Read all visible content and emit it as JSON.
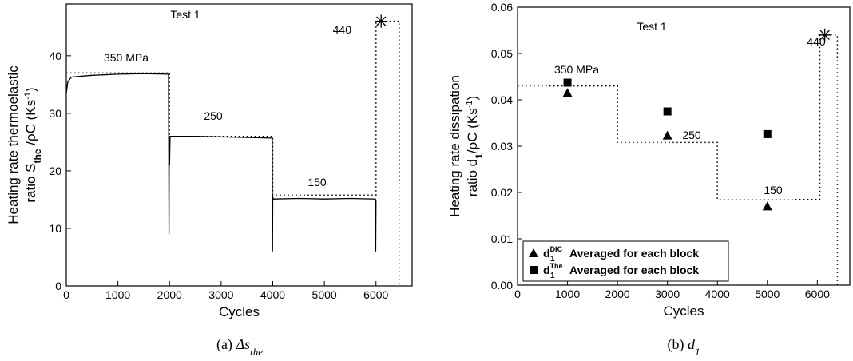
{
  "chart_data": [
    {
      "type": "line",
      "xlabel": "Cycles",
      "ylabel": [
        "Heating rate thermoelastic",
        "ratio S",
        "the",
        " /ρC (Ks",
        "-1",
        ")"
      ],
      "caption": [
        "(a) ",
        "Δs",
        "the"
      ],
      "xlim": [
        0,
        6700
      ],
      "ylim": [
        0,
        49
      ],
      "xticks": [
        0,
        1000,
        2000,
        3000,
        4000,
        5000,
        6000
      ],
      "yticks": [
        0,
        10,
        20,
        30,
        40
      ],
      "annotations": [
        "Test 1",
        "350 MPa",
        "250",
        "150",
        "440"
      ],
      "series": [
        {
          "style": "solid",
          "color": "#000000",
          "x": [
            0,
            30,
            100,
            500,
            1000,
            1500,
            1980,
            1990,
            1995,
            2000,
            2010,
            2500,
            3000,
            3500,
            3990,
            3995,
            4000,
            4010,
            4030,
            4500,
            5000,
            5500,
            5990,
            5995,
            6000
          ],
          "values": [
            33.5,
            35.5,
            36.3,
            36.6,
            36.8,
            36.9,
            36.8,
            9,
            26,
            21,
            26,
            26.0,
            25.9,
            25.8,
            25.7,
            6,
            15.5,
            15,
            15.1,
            15.2,
            15.1,
            15.2,
            15.1,
            6,
            15
          ]
        },
        {
          "style": "dotted",
          "color": "#000000",
          "x": [
            0,
            2000,
            2000,
            4000,
            4000,
            6000,
            6000,
            6450,
            6450
          ],
          "values": [
            37,
            37,
            26,
            26,
            15.8,
            15.8,
            46,
            46,
            0
          ]
        },
        {
          "style": "none",
          "marker": "star",
          "color": "#000000",
          "x": [
            6100
          ],
          "values": [
            46
          ]
        }
      ]
    },
    {
      "type": "scatter",
      "xlabel": "Cycles",
      "ylabel": [
        "Heating rate dissipation",
        "ratio d",
        "1",
        "/ρC (Ks",
        "-1",
        ")"
      ],
      "caption": [
        "(b)  ",
        "d",
        "1"
      ],
      "xlim": [
        0,
        6650
      ],
      "ylim": [
        0,
        0.06
      ],
      "xticks": [
        0,
        1000,
        2000,
        3000,
        4000,
        5000,
        6000
      ],
      "yticks": [
        {
          "value": 0,
          "label": "0.00"
        },
        0.01,
        0.02,
        0.03,
        0.04,
        0.05,
        0.06
      ],
      "annotations": [
        "Test 1",
        "350 MPa",
        "250",
        "150",
        "440"
      ],
      "legend": "lower left",
      "series": [
        {
          "name": [
            "d",
            "1",
            "DIC",
            "Averaged for each block"
          ],
          "style": "none",
          "marker": "triangle",
          "color": "#000000",
          "x": [
            1000,
            3000,
            5000
          ],
          "values": [
            0.0415,
            0.0323,
            0.017
          ]
        },
        {
          "name": [
            "d",
            "1",
            "The",
            "Averaged for each block"
          ],
          "style": "none",
          "marker": "square",
          "color": "#000000",
          "x": [
            1000,
            3000,
            5000
          ],
          "values": [
            0.0437,
            0.0375,
            0.0326
          ]
        },
        {
          "style": "dotted",
          "color": "#000000",
          "x": [
            0,
            2000,
            2000,
            4000,
            4000,
            6050,
            6050,
            6400,
            6400
          ],
          "values": [
            0.043,
            0.043,
            0.0308,
            0.0308,
            0.0185,
            0.0185,
            0.054,
            0.054,
            0
          ]
        },
        {
          "style": "none",
          "marker": "star",
          "color": "#000000",
          "x": [
            6150
          ],
          "values": [
            0.054
          ]
        }
      ]
    }
  ]
}
